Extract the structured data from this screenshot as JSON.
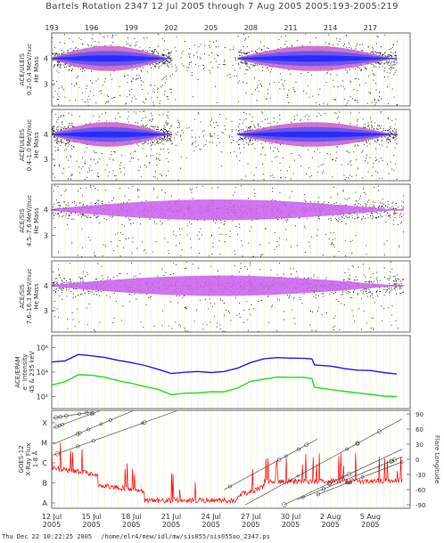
{
  "header": {
    "title": "Bartels Rotation 2347    12 Jul 2005 through 7 Aug 2005    2005:193-2005:219"
  },
  "footer": {
    "timestamp": "Thu Dec 22 10:22:25 2005",
    "path": "/home/elr4/mew/idl/mw/sis055/sis055ao_2347.ps"
  },
  "chart_data": [
    {
      "type": "scatter",
      "panel": "ACE/ULEIS 0.2-0.4 MeV/nuc",
      "ylabel": [
        "ACE/ULEIS",
        "0.2–0.4 MeV/nuc",
        "He Mass"
      ],
      "yticks": [
        "4",
        "3"
      ],
      "doy_ticks": [
        "193",
        "196",
        "199",
        "202",
        "205",
        "208",
        "211",
        "214",
        "217"
      ],
      "density_colors": [
        "#000000",
        "#cc66cc",
        "#6655ee",
        "#2a2aff"
      ],
      "segments": [
        {
          "start_doy": 193.0,
          "end_doy": 202.0,
          "level": "high"
        },
        {
          "start_doy": 202.0,
          "end_doy": 207.0,
          "level": "sparse"
        },
        {
          "start_doy": 207.0,
          "end_doy": 219.0,
          "level": "high"
        }
      ]
    },
    {
      "type": "scatter",
      "panel": "ACE/ULEIS 0.4-1.0 MeV/nuc",
      "ylabel": [
        "ACE/ULEIS",
        "0.4–1.0 MeV/nuc",
        "He Mass"
      ],
      "yticks": [
        "4",
        "3"
      ],
      "density_colors": [
        "#000000",
        "#cc66cc",
        "#6655ee",
        "#2a2aff"
      ],
      "segments": [
        {
          "start_doy": 193.0,
          "end_doy": 202.0,
          "level": "high"
        },
        {
          "start_doy": 202.0,
          "end_doy": 207.0,
          "level": "sparse"
        },
        {
          "start_doy": 207.0,
          "end_doy": 219.0,
          "level": "high"
        }
      ]
    },
    {
      "type": "scatter",
      "panel": "ACE/SIS 4.5-7.6 MeV/nuc",
      "ylabel": [
        "ACE/SIS",
        "4.5–7.6 MeV/nuc",
        "He Mass"
      ],
      "yticks": [
        "4",
        "3"
      ],
      "density_colors": [
        "#000000",
        "#cc66ee"
      ],
      "segments": [
        {
          "start_doy": 193.0,
          "end_doy": 219.5,
          "level": "medium"
        }
      ]
    },
    {
      "type": "scatter",
      "panel": "ACE/SIS 7.6-16.3 MeV/nuc",
      "ylabel": [
        "ACE/SIS",
        "7.6–16.3 MeV/nuc",
        "He Mass"
      ],
      "yticks": [
        "4",
        "3"
      ],
      "density_colors": [
        "#000000",
        "#cc66ee"
      ],
      "segments": [
        {
          "start_doy": 193.0,
          "end_doy": 219.5,
          "level": "medium"
        }
      ]
    },
    {
      "type": "line",
      "panel": "ACE/EPAM",
      "ylabel": [
        "ACE/EPAM",
        "e⁻ Intensity",
        "45 & 235 keV"
      ],
      "yscale": "log",
      "ytick_labels": [
        "10⁶",
        "10⁴",
        "10²"
      ],
      "ylim": [
        10,
        10000000
      ],
      "series": [
        {
          "color": "#1a1aff",
          "x": [
            193.0,
            194.0,
            195.0,
            196.0,
            197.0,
            198.0,
            199.0,
            200.0,
            201.0,
            202.0,
            203.0,
            204.0,
            205.0,
            206.0,
            207.0,
            208.0,
            209.0,
            210.0,
            211.0,
            212.0,
            212.6,
            212.8,
            214.0,
            215.0,
            216.0,
            217.0,
            218.0,
            219.0
          ],
          "y": [
            70000,
            90000,
            250000,
            200000,
            150000,
            90000,
            60000,
            35000,
            18000,
            8000,
            9000,
            10000,
            10500,
            12000,
            20000,
            70000,
            110000,
            140000,
            150000,
            130000,
            110000,
            40000,
            30000,
            22000,
            15000,
            12000,
            9000,
            7000
          ]
        },
        {
          "color": "#22dd22",
          "x": [
            193.0,
            194.0,
            195.0,
            196.0,
            197.0,
            198.0,
            199.0,
            200.0,
            201.0,
            202.0,
            203.0,
            204.0,
            205.0,
            206.0,
            207.0,
            208.0,
            209.0,
            210.0,
            211.0,
            212.0,
            212.6,
            212.8,
            214.0,
            215.0,
            216.0,
            217.0,
            218.0,
            219.0
          ],
          "y": [
            800,
            1500,
            6000,
            5000,
            3500,
            2000,
            1200,
            700,
            350,
            150,
            180,
            200,
            220,
            260,
            450,
            1600,
            3000,
            3800,
            4000,
            3300,
            2600,
            600,
            400,
            300,
            200,
            160,
            120,
            90
          ]
        }
      ]
    },
    {
      "type": "line",
      "panel": "GOES-12",
      "ylabel": [
        "GOES-12",
        "X-Ray Flux",
        "1-8 Å"
      ],
      "yticks": [
        "X",
        "M",
        "C",
        "B",
        "A"
      ],
      "y2label": "Flare Longitude",
      "y2ticks": [
        "90",
        "60",
        "30",
        "0",
        "-30",
        "-60",
        "-90"
      ],
      "x_date_labels": [
        "12 Jul\n2005",
        "15 Jul\n2005",
        "18 Jul\n2005",
        "21 Jul\n2005",
        "24 Jul\n2005",
        "27 Jul\n2005",
        "30 Jul\n2005",
        "2 Aug\n2005",
        "5 Aug\n2005"
      ],
      "xray_color": "#ff0000",
      "flare_line_color": "#333333",
      "flare_tracks": [
        {
          "start_doy": 193.1,
          "end_doy": 196.1,
          "lon_start": 82,
          "lon_end": 94
        },
        {
          "start_doy": 193.1,
          "end_doy": 196.6,
          "lon_start": 62,
          "lon_end": 96
        },
        {
          "start_doy": 193.1,
          "end_doy": 199.1,
          "lon_start": 30,
          "lon_end": 96
        },
        {
          "start_doy": 193.1,
          "end_doy": 202.4,
          "lon_start": 8,
          "lon_end": 96
        },
        {
          "start_doy": 206.0,
          "end_doy": 213.0,
          "lon_start": -60,
          "lon_end": 40
        },
        {
          "start_doy": 207.6,
          "end_doy": 219.4,
          "lon_start": -90,
          "lon_end": 80
        },
        {
          "start_doy": 210.5,
          "end_doy": 219.4,
          "lon_start": -90,
          "lon_end": 20
        },
        {
          "start_doy": 211.5,
          "end_doy": 219.4,
          "lon_start": -80,
          "lon_end": 5
        },
        {
          "start_doy": 213.0,
          "end_doy": 219.4,
          "lon_start": -70,
          "lon_end": -5
        }
      ]
    }
  ]
}
